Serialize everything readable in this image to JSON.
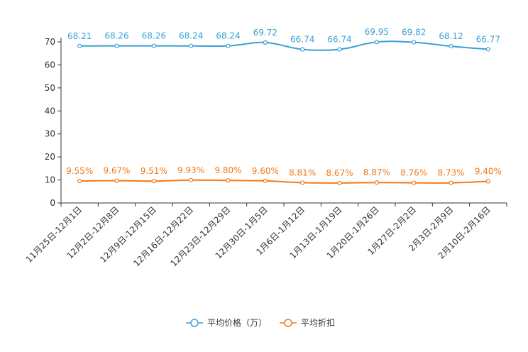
{
  "chart_data": {
    "type": "line",
    "title": "",
    "xlabel": "",
    "ylabel": "",
    "ylim": [
      0,
      70
    ],
    "yticks": [
      0,
      10,
      20,
      30,
      40,
      50,
      60,
      70
    ],
    "grid": false,
    "legend_position": "bottom-center",
    "categories": [
      "11月25日-12月1日",
      "12月2日-12月8日",
      "12月9日-12月15日",
      "12月16日-12月22日",
      "12月23日-12月29日",
      "12月30日-1月5日",
      "1月6日-1月12日",
      "1月13日-1月19日",
      "1月20日-1月26日",
      "1月27日-2月2日",
      "2月3日-2月9日",
      "2月10日-2月16日"
    ],
    "series": [
      {
        "name": "平均价格（万）",
        "color": "#3aa0d6",
        "values": [
          68.21,
          68.26,
          68.26,
          68.24,
          68.24,
          69.72,
          66.74,
          66.74,
          69.95,
          69.82,
          68.12,
          66.77
        ],
        "labels": [
          "68.21",
          "68.26",
          "68.26",
          "68.24",
          "68.24",
          "69.72",
          "66.74",
          "66.74",
          "69.95",
          "69.82",
          "68.12",
          "66.77"
        ]
      },
      {
        "name": "平均折扣",
        "color": "#f27a1a",
        "values": [
          9.55,
          9.67,
          9.51,
          9.93,
          9.8,
          9.6,
          8.81,
          8.67,
          8.87,
          8.76,
          8.73,
          9.4
        ],
        "labels": [
          "9.55%",
          "9.67%",
          "9.51%",
          "9.93%",
          "9.80%",
          "9.60%",
          "8.81%",
          "8.67%",
          "8.87%",
          "8.76%",
          "8.73%",
          "9.40%"
        ]
      }
    ]
  }
}
